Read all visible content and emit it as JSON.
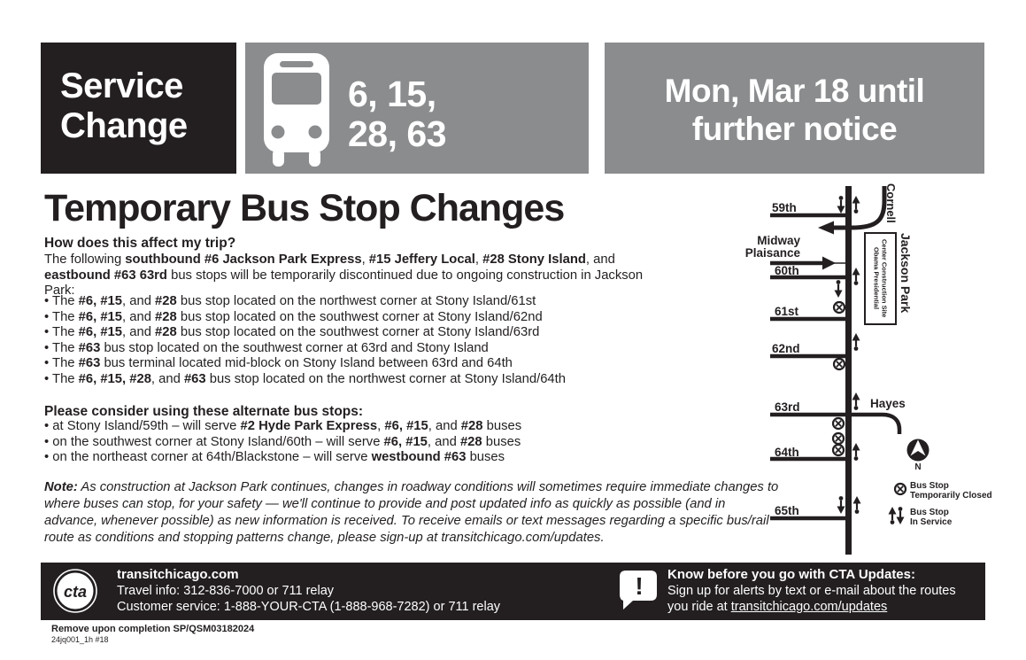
{
  "colors": {
    "black": "#231f20",
    "gray": "#8a8c8e",
    "white": "#ffffff"
  },
  "header": {
    "service_change": {
      "line1": "Service",
      "line2": "Change"
    },
    "routes": {
      "line1": "6, 15,",
      "line2": "28, 63"
    },
    "effective": {
      "line1": "Mon, Mar 18 until",
      "line2": "further notice"
    }
  },
  "title": "Temporary Bus Stop Changes",
  "body": {
    "affect_heading": "How does this affect my trip?",
    "intro": [
      {
        "t": "The following "
      },
      {
        "t": "southbound #6 Jackson Park Express",
        "b": true
      },
      {
        "t": ", "
      },
      {
        "t": "#15 Jeffery Local",
        "b": true
      },
      {
        "t": ", "
      },
      {
        "t": "#28 Stony Island",
        "b": true
      },
      {
        "t": ", and "
      },
      {
        "t": "eastbound #63 63rd",
        "b": true
      },
      {
        "t": " bus stops will be temporarily discontinued due to ongoing construction in Jackson Park:"
      }
    ],
    "closed_bullets": [
      [
        {
          "t": "The "
        },
        {
          "t": "#6, #15",
          "b": true
        },
        {
          "t": ", and "
        },
        {
          "t": "#28",
          "b": true
        },
        {
          "t": " bus stop located on the northwest corner at Stony Island/61st"
        }
      ],
      [
        {
          "t": "The "
        },
        {
          "t": "#6, #15",
          "b": true
        },
        {
          "t": ", and "
        },
        {
          "t": "#28",
          "b": true
        },
        {
          "t": " bus stop located on the southwest corner at Stony Island/62nd"
        }
      ],
      [
        {
          "t": "The "
        },
        {
          "t": "#6, #15",
          "b": true
        },
        {
          "t": ", and "
        },
        {
          "t": "#28",
          "b": true
        },
        {
          "t": " bus stop located on the southwest corner at Stony Island/63rd"
        }
      ],
      [
        {
          "t": "The "
        },
        {
          "t": "#63",
          "b": true
        },
        {
          "t": " bus stop located on the southwest corner at 63rd and Stony Island"
        }
      ],
      [
        {
          "t": "The "
        },
        {
          "t": "#63",
          "b": true
        },
        {
          "t": " bus terminal located mid-block on Stony Island between 63rd and 64th"
        }
      ],
      [
        {
          "t": "The "
        },
        {
          "t": "#6, #15, #28",
          "b": true
        },
        {
          "t": ", and "
        },
        {
          "t": "#63",
          "b": true
        },
        {
          "t": " bus stop located on the northwest corner at Stony Island/64th"
        }
      ]
    ],
    "alternate_heading": "Please consider using these alternate bus stops:",
    "alternate_bullets": [
      [
        {
          "t": "at Stony Island/59th – will serve "
        },
        {
          "t": "#2 Hyde Park Express",
          "b": true
        },
        {
          "t": ", "
        },
        {
          "t": "#6, #15",
          "b": true
        },
        {
          "t": ", and "
        },
        {
          "t": "#28",
          "b": true
        },
        {
          "t": " buses"
        }
      ],
      [
        {
          "t": "on the southwest corner at Stony Island/60th – will serve "
        },
        {
          "t": "#6, #15",
          "b": true
        },
        {
          "t": ", and "
        },
        {
          "t": "#28",
          "b": true
        },
        {
          "t": " buses"
        }
      ],
      [
        {
          "t": "on the northeast corner at 64th/Blackstone – will serve "
        },
        {
          "t": "westbound #63",
          "b": true
        },
        {
          "t": " buses"
        }
      ]
    ],
    "note": [
      {
        "t": "Note:",
        "b": true
      },
      {
        "t": " As construction at Jackson Park continues, changes in roadway conditions will sometimes require immediate changes to where buses can stop, for your safety — we'll continue to provide and post updated info as quickly as possible (and in advance, whenever possible) as new information is received. To receive emails or text messages regarding a specific bus/rail route as conditions and stopping patterns change, please sign-up at transitchicago.com/updates."
      }
    ]
  },
  "map": {
    "streets": [
      "59th",
      "60th",
      "61st",
      "62nd",
      "63rd",
      "64th",
      "65th"
    ],
    "midway_line1": "Midway",
    "midway_line2": "Plaisance",
    "cornell": "Cornell",
    "hayes": "Hayes",
    "jackson_park": "Jackson Park",
    "obama_line1": "Obama Presidential",
    "obama_line2": "Center Construction Site",
    "north_label": "N",
    "legend": {
      "closed_line1": "Bus Stop",
      "closed_line2": "Temporarily Closed",
      "service_line1": "Bus Stop",
      "service_line2": "In Service"
    }
  },
  "footer": {
    "logo": "cta",
    "site": "transitchicago.com",
    "travel": "Travel info: 312-836-7000 or 711 relay",
    "customer": "Customer service:  1-888-YOUR-CTA (1-888-968-7282) or 711 relay",
    "updates_heading": "Know before you go with CTA Updates:",
    "updates_line2": "Sign up for alerts by text or e-mail about the routes",
    "updates_line3_prefix": "you ride at ",
    "updates_link": "transitchicago.com/updates"
  },
  "fineprint": {
    "remove": "Remove upon completion  SP/QSM03182024",
    "code": "24jq001_1h #18"
  }
}
